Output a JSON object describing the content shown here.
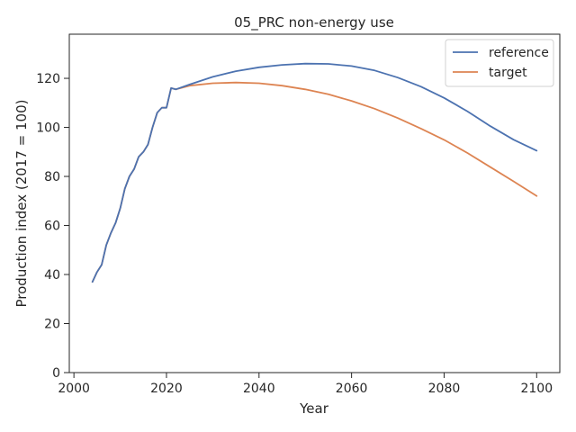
{
  "chart_data": {
    "type": "line",
    "title": "05_PRC non-energy use",
    "xlabel": "Year",
    "ylabel": "Production index (2017 = 100)",
    "xlim": [
      1999,
      2105
    ],
    "ylim": [
      0,
      138
    ],
    "xticks": [
      2000,
      2020,
      2040,
      2060,
      2080,
      2100
    ],
    "yticks": [
      0,
      20,
      40,
      60,
      80,
      100,
      120
    ],
    "grid": false,
    "legend": "top-right",
    "series": [
      {
        "name": "reference",
        "color": "#4c72b0",
        "x": [
          2004,
          2005,
          2006,
          2007,
          2008,
          2009,
          2010,
          2011,
          2012,
          2013,
          2014,
          2015,
          2016,
          2017,
          2018,
          2019,
          2020,
          2021,
          2022,
          2025,
          2030,
          2035,
          2040,
          2045,
          2050,
          2055,
          2060,
          2065,
          2070,
          2075,
          2080,
          2085,
          2090,
          2095,
          2100
        ],
        "y": [
          37,
          41,
          44,
          52,
          57,
          61,
          67,
          75,
          80,
          83,
          88,
          90,
          93,
          100,
          106,
          108,
          108,
          116,
          115.5,
          117.5,
          120.6,
          122.9,
          124.5,
          125.5,
          126.0,
          125.9,
          125.0,
          123.2,
          120.3,
          116.6,
          112.0,
          106.6,
          100.5,
          95.0,
          90.5
        ]
      },
      {
        "name": "target",
        "color": "#dd8452",
        "x": [
          2004,
          2005,
          2006,
          2007,
          2008,
          2009,
          2010,
          2011,
          2012,
          2013,
          2014,
          2015,
          2016,
          2017,
          2018,
          2019,
          2020,
          2021,
          2022,
          2025,
          2030,
          2035,
          2040,
          2045,
          2050,
          2055,
          2060,
          2065,
          2070,
          2075,
          2080,
          2085,
          2090,
          2095,
          2100
        ],
        "y": [
          37,
          41,
          44,
          52,
          57,
          61,
          67,
          75,
          80,
          83,
          88,
          90,
          93,
          100,
          106,
          108,
          108,
          116,
          115.5,
          117.0,
          118.0,
          118.3,
          118.0,
          117.0,
          115.5,
          113.5,
          110.8,
          107.6,
          103.8,
          99.5,
          94.9,
          89.6,
          83.8,
          78.0,
          72.0
        ]
      }
    ]
  }
}
